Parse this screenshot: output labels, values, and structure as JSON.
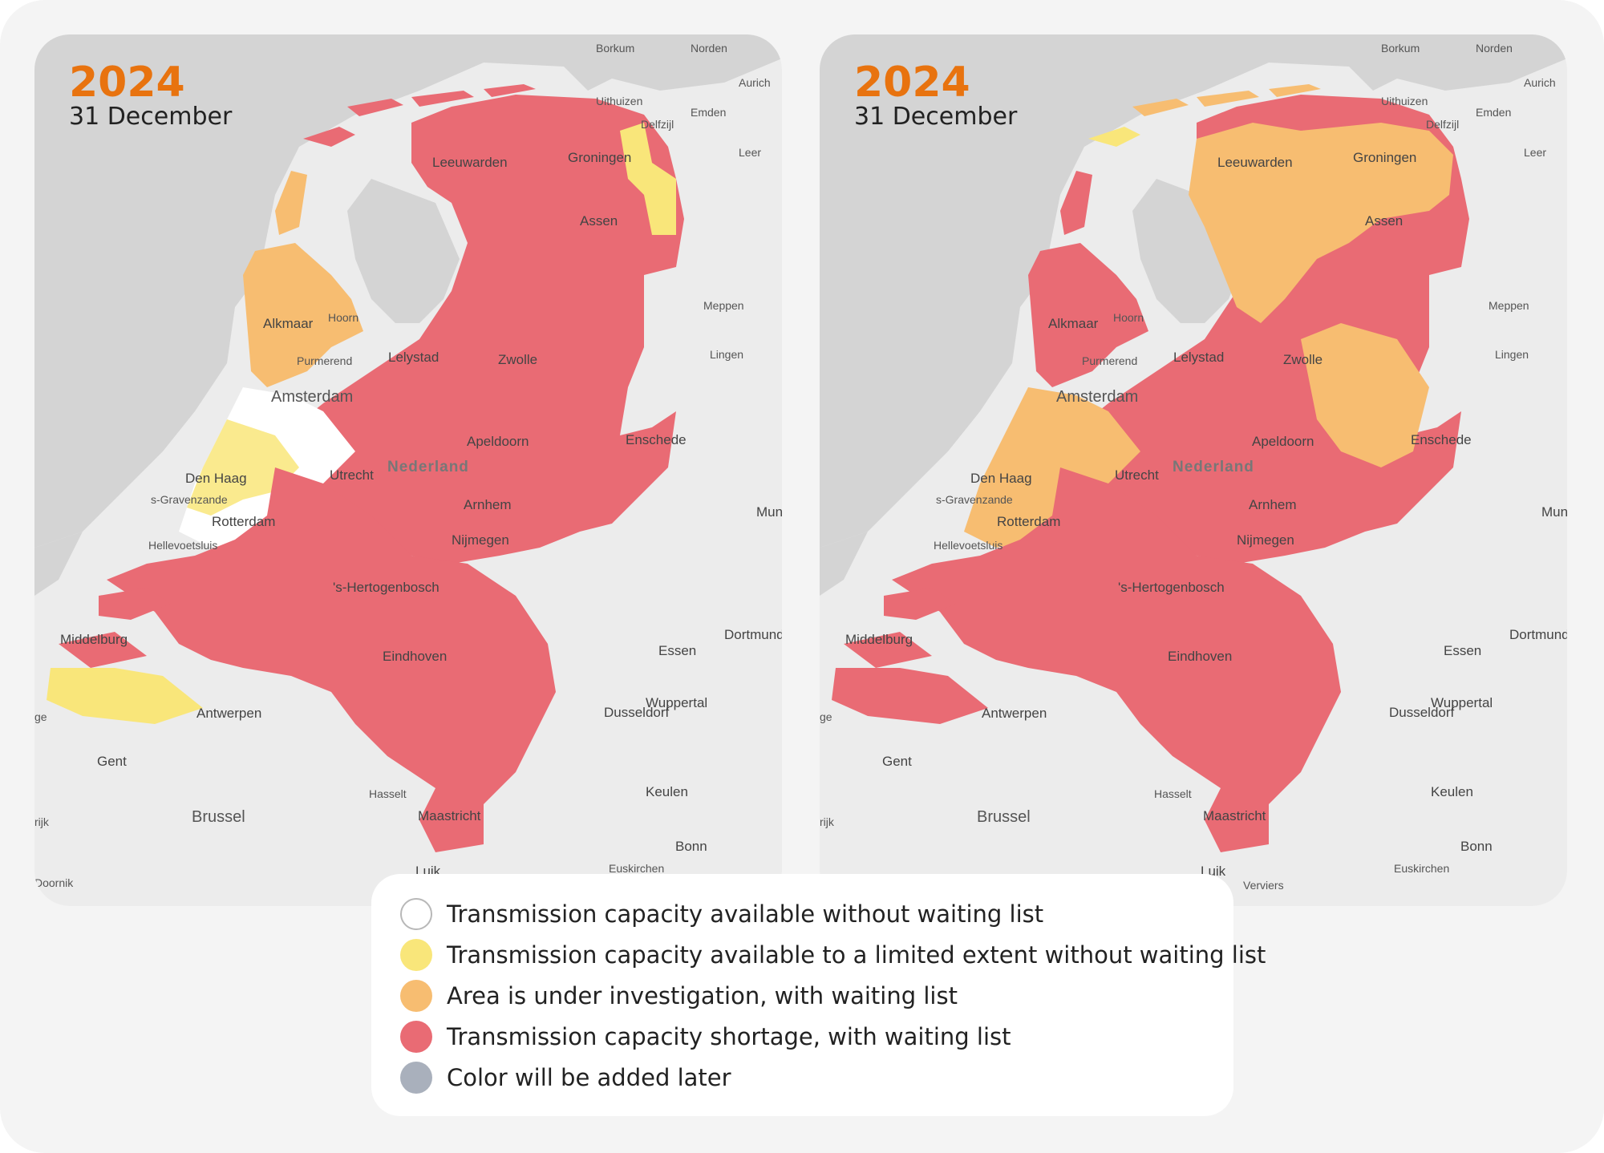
{
  "colors": {
    "available": "#ffffff",
    "limited": "#f9e67a",
    "investigation": "#f7bd71",
    "shortage": "#e96b74",
    "later": "#a9b0bc",
    "sea": "#d4d4d4",
    "land": "#ececec",
    "year": "#e8730f"
  },
  "maps": [
    {
      "year": "2024",
      "date": "31 December",
      "labels": {
        "borkum": "Borkum",
        "norden": "Norden",
        "aurich": "Aurich",
        "uithuizen": "Uithuizen",
        "emden": "Emden",
        "delfzijl": "Delfzijl",
        "leer": "Leer",
        "leeuwarden": "Leeuwarden",
        "groningen": "Groningen",
        "assen": "Assen",
        "meppen": "Meppen",
        "lingen": "Lingen",
        "alkmaar": "Alkmaar",
        "hoorn": "Hoorn",
        "purmerend": "Purmerend",
        "lelystad": "Lelystad",
        "zwolle": "Zwolle",
        "amsterdam": "Amsterdam",
        "apeldoorn": "Apeldoorn",
        "enschede": "Enschede",
        "nederland": "Nederland",
        "denhaag": "Den Haag",
        "utrecht": "Utrecht",
        "gravenzande": "s-Gravenzande",
        "rotterdam": "Rotterdam",
        "arnhem": "Arnhem",
        "munster": "Muns",
        "hellevoetsluis": "Hellevoetsluis",
        "nijmegen": "Nijmegen",
        "hertogenbosch": "'s-Hertogenbosch",
        "middelburg": "Middelburg",
        "dortmund": "Dortmund",
        "essen": "Essen",
        "eindhoven": "Eindhoven",
        "wuppertal": "Wuppertal",
        "antwerpen": "Antwerpen",
        "dusseldorf": "Dusseldorf",
        "ge": "ge",
        "gent": "Gent",
        "hasselt": "Hasselt",
        "keulen": "Keulen",
        "brussel": "Brussel",
        "maastricht": "Maastricht",
        "rijk": "rijk",
        "bonn": "Bonn",
        "euskirchen": "Euskirchen",
        "luik": "Luik",
        "doornik": "Doornik",
        "verviers": ""
      }
    },
    {
      "year": "2024",
      "date": "31 December",
      "labels": {
        "borkum": "Borkum",
        "norden": "Norden",
        "aurich": "Aurich",
        "uithuizen": "Uithuizen",
        "emden": "Emden",
        "delfzijl": "Delfzijl",
        "leer": "Leer",
        "leeuwarden": "Leeuwarden",
        "groningen": "Groningen",
        "assen": "Assen",
        "meppen": "Meppen",
        "lingen": "Lingen",
        "alkmaar": "Alkmaar",
        "hoorn": "Hoorn",
        "purmerend": "Purmerend",
        "lelystad": "Lelystad",
        "zwolle": "Zwolle",
        "amsterdam": "Amsterdam",
        "apeldoorn": "Apeldoorn",
        "enschede": "Enschede",
        "nederland": "Nederland",
        "denhaag": "Den Haag",
        "utrecht": "Utrecht",
        "gravenzande": "s-Gravenzande",
        "rotterdam": "Rotterdam",
        "arnhem": "Arnhem",
        "munster": "Muns",
        "hellevoetsluis": "Hellevoetsluis",
        "nijmegen": "Nijmegen",
        "hertogenbosch": "'s-Hertogenbosch",
        "middelburg": "Middelburg",
        "dortmund": "Dortmund",
        "essen": "Essen",
        "eindhoven": "Eindhoven",
        "wuppertal": "Wuppertal",
        "antwerpen": "Antwerpen",
        "dusseldorf": "Dusseldorf",
        "ge": "ge",
        "gent": "Gent",
        "hasselt": "Hasselt",
        "keulen": "Keulen",
        "brussel": "Brussel",
        "maastricht": "Maastricht",
        "rijk": "rijk",
        "bonn": "Bonn",
        "euskirchen": "Euskirchen",
        "luik": "Luik",
        "doornik": "",
        "verviers": "Verviers"
      }
    }
  ],
  "legend": [
    {
      "label": "Transmission capacity available without waiting list",
      "color": "#ffffff"
    },
    {
      "label": "Transmission capacity available to a limited extent without waiting list",
      "color": "#f9e67a"
    },
    {
      "label": "Area is under investigation, with waiting list",
      "color": "#f7bd71"
    },
    {
      "label": "Transmission capacity shortage, with waiting list",
      "color": "#e96b74"
    },
    {
      "label": "Color will be added later",
      "color": "#a9b0bc"
    }
  ]
}
